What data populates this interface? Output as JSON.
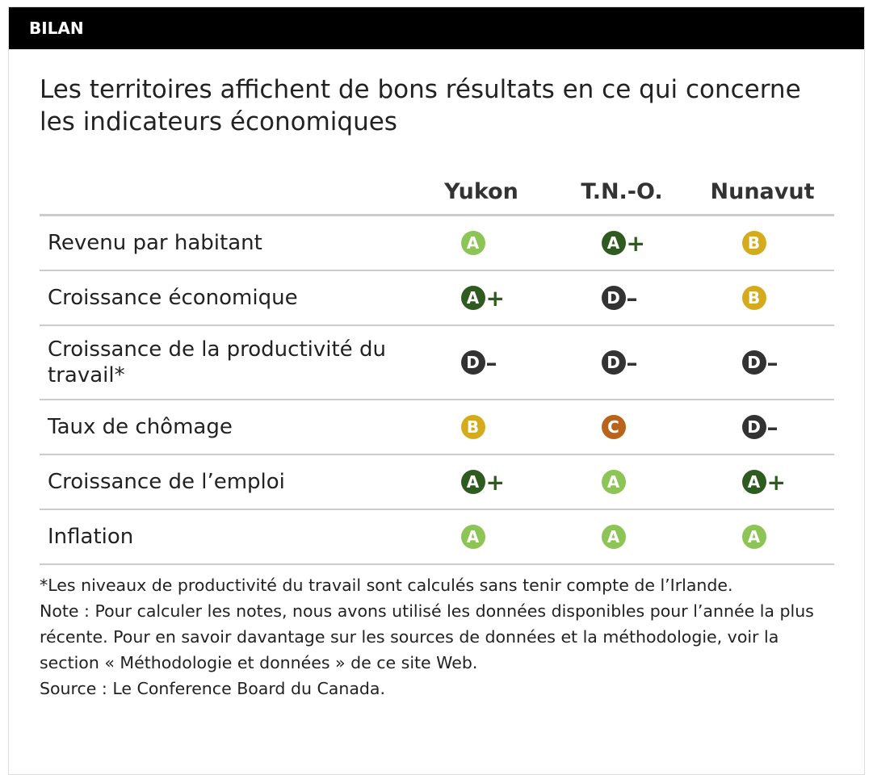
{
  "header": {
    "label": "BILAN"
  },
  "title": "Les territoires affichent de bons résultats en ce qui concerne les indicateurs économiques",
  "grade_colors": {
    "A": "#8cc456",
    "A+": "#2f5b20",
    "B": "#d5ab1e",
    "C": "#b9641c",
    "D–": "#333333"
  },
  "table": {
    "columns": [
      "Yukon",
      "T.N.-O.",
      "Nunavut"
    ],
    "rows": [
      {
        "label": "Revenu par habitant",
        "grades": [
          {
            "letter": "A"
          },
          {
            "letter": "A",
            "sign": "+"
          },
          {
            "letter": "B"
          }
        ]
      },
      {
        "label": "Croissance économique",
        "grades": [
          {
            "letter": "A",
            "sign": "+"
          },
          {
            "letter": "D",
            "sign": "–"
          },
          {
            "letter": "B"
          }
        ]
      },
      {
        "label": "Croissance de la productivité du travail*",
        "grades": [
          {
            "letter": "D",
            "sign": "–"
          },
          {
            "letter": "D",
            "sign": "–"
          },
          {
            "letter": "D",
            "sign": "–"
          }
        ]
      },
      {
        "label": "Taux de chômage",
        "grades": [
          {
            "letter": "B"
          },
          {
            "letter": "C"
          },
          {
            "letter": "D",
            "sign": "–"
          }
        ]
      },
      {
        "label": "Croissance de l’emploi",
        "grades": [
          {
            "letter": "A",
            "sign": "+"
          },
          {
            "letter": "A"
          },
          {
            "letter": "A",
            "sign": "+"
          }
        ]
      },
      {
        "label": "Inflation",
        "grades": [
          {
            "letter": "A"
          },
          {
            "letter": "A"
          },
          {
            "letter": "A"
          }
        ]
      }
    ]
  },
  "notes": [
    "*Les niveaux de productivité du travail sont calculés sans tenir compte de l’Irlande.",
    "Note : Pour calculer les notes, nous avons utilisé les données disponibles pour l’année la plus récente. Pour en savoir davantage sur les sources de données et la méthodologie, voir la section « Méthodologie et données » de ce site Web.",
    "Source : Le Conference Board du Canada."
  ]
}
